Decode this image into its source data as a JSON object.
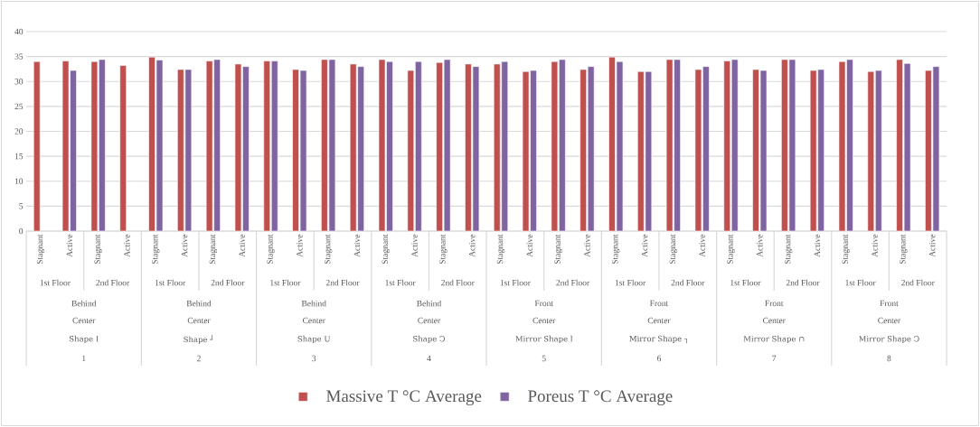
{
  "chart_data": {
    "type": "bar",
    "categories": [
      "Stagnant",
      "Active",
      "Stagnant",
      "Active",
      "Stagnant",
      "Active",
      "Stagnant",
      "Active",
      "Stagnant",
      "Active",
      "Stagnant",
      "Active",
      "Stagnant",
      "Active",
      "Stagnant",
      "Active",
      "Stagnant",
      "Active",
      "Stagnant",
      "Active",
      "Stagnant",
      "Active",
      "Stagnant",
      "Active",
      "Stagnant",
      "Active",
      "Stagnant",
      "Active",
      "Stagnant",
      "Active",
      "Stagnant",
      "Active"
    ],
    "series": [
      {
        "name": "Massive T °C Average",
        "color": "#c0504d",
        "values": [
          34.0,
          34.1,
          34.0,
          33.2,
          34.9,
          32.4,
          34.1,
          33.5,
          34.1,
          32.4,
          34.4,
          33.5,
          34.4,
          32.2,
          33.8,
          33.5,
          33.5,
          32.0,
          34.0,
          32.4,
          34.9,
          32.0,
          34.4,
          32.4,
          34.1,
          32.4,
          34.4,
          32.2,
          34.0,
          32.0,
          34.4,
          32.2
        ]
      },
      {
        "name": "Poreus T °C Average",
        "color": "#8064a2",
        "values": [
          null,
          32.2,
          34.4,
          null,
          34.3,
          32.4,
          34.4,
          33.0,
          34.1,
          32.2,
          34.4,
          33.0,
          34.0,
          34.0,
          34.4,
          33.0,
          34.0,
          32.2,
          34.4,
          33.0,
          34.0,
          32.0,
          34.4,
          33.0,
          34.4,
          32.2,
          34.4,
          32.4,
          34.4,
          32.2,
          33.6,
          33.0
        ]
      }
    ],
    "annotations": [
      "1st Floor",
      "2nd Floor",
      "1st Floor",
      "2nd Floor",
      "1st Floor",
      "2nd Floor",
      "1st Floor",
      "2nd Floor",
      "1st Floor",
      "2nd Floor",
      "1st Floor",
      "2nd Floor",
      "1st Floor",
      "2nd Floor",
      "1st Floor",
      "2nd Floor",
      "Behind",
      "Behind",
      "Behind",
      "Behind",
      "Front",
      "Front",
      "Front",
      "Front",
      "Center",
      "Center",
      "Center",
      "Center",
      "Center",
      "Center",
      "Center",
      "Center",
      "Shape I",
      "Shape ┘",
      "Shape U",
      "Shape Ↄ",
      "Mirror Shape l",
      "Mirror Shape ┐",
      "Mirror Shape ∩",
      "Mirror Shape Ↄ",
      "1",
      "2",
      "3",
      "4",
      "5",
      "6",
      "7",
      "8"
    ],
    "ylim": [
      0,
      40
    ],
    "yticks": [
      0,
      5,
      10,
      15,
      20,
      25,
      30,
      35,
      40
    ],
    "grid": "y",
    "legend": "bottom"
  }
}
